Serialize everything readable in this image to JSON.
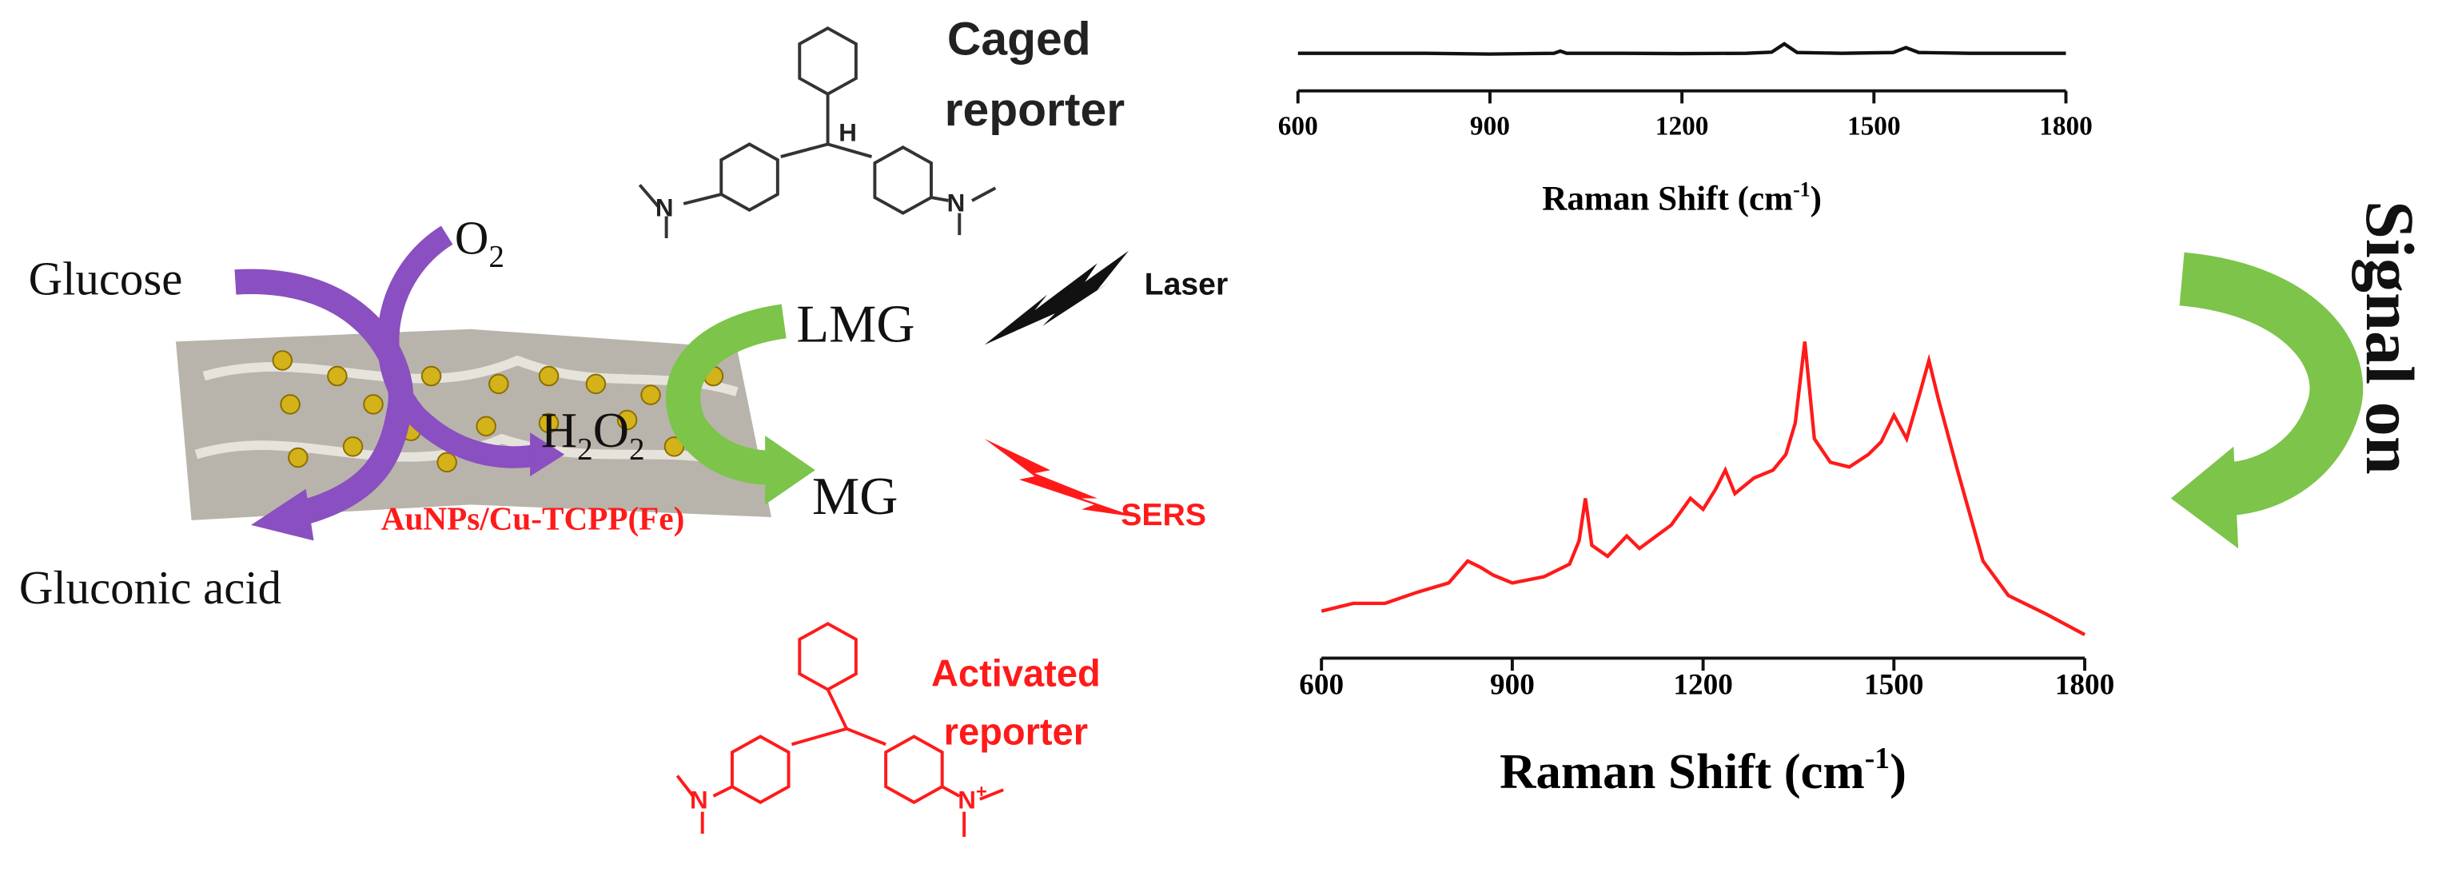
{
  "labels": {
    "caged_reporter": [
      "Caged",
      "reporter"
    ],
    "glucose": "Glucose",
    "o2": {
      "text": "O",
      "sub": "2"
    },
    "lmg": "LMG",
    "laser": "Laser",
    "h2o2": [
      "H",
      "2",
      "O",
      "2"
    ],
    "mg": "MG",
    "sers": "SERS",
    "material": "AuNPs/Cu-TCPP(Fe)",
    "gluconic_acid": "Gluconic acid",
    "activated_reporter": [
      "Activated",
      "reporter"
    ],
    "signal_on": "Signal on",
    "caged_atoms": [
      "H",
      "N",
      "N"
    ],
    "activated_atoms": [
      "N",
      "N",
      "+"
    ]
  },
  "chart_data": [
    {
      "type": "line",
      "x": [
        600,
        700,
        800,
        900,
        1000,
        1010,
        1020,
        1100,
        1200,
        1300,
        1340,
        1360,
        1380,
        1450,
        1530,
        1550,
        1570,
        1650,
        1800
      ],
      "series": [
        {
          "color": "#111111",
          "values": [
            10,
            10,
            10,
            9.8,
            10,
            10.6,
            10,
            10,
            9.9,
            10,
            10.3,
            12.5,
            10.2,
            10,
            10.2,
            11.5,
            10.2,
            10,
            10
          ]
        }
      ],
      "xlim": [
        600,
        1800
      ],
      "xticks": [
        600,
        900,
        1200,
        1500,
        1800
      ],
      "ylim": [
        0,
        30
      ],
      "x_label": {
        "text": "Raman Shift (cm",
        "sup": "-1",
        "end": ")"
      }
    },
    {
      "type": "line",
      "x": [
        600,
        650,
        700,
        750,
        800,
        830,
        850,
        870,
        900,
        950,
        990,
        1005,
        1015,
        1025,
        1050,
        1080,
        1100,
        1150,
        1180,
        1200,
        1220,
        1235,
        1250,
        1280,
        1310,
        1330,
        1345,
        1360,
        1375,
        1400,
        1430,
        1460,
        1480,
        1500,
        1520,
        1540,
        1555,
        1570,
        1600,
        1640,
        1680,
        1740,
        1800
      ],
      "series": [
        {
          "color": "#ff1a1a",
          "values": [
            15,
            17.5,
            17.5,
            21,
            24,
            31,
            29,
            26.5,
            24,
            26,
            30,
            37.5,
            51,
            36,
            32.5,
            39,
            35,
            42.5,
            51,
            47.5,
            54,
            60,
            52.5,
            57.5,
            60,
            65,
            75,
            101,
            70,
            62.5,
            61,
            65,
            69,
            77.5,
            70,
            84,
            95,
            82.5,
            60,
            31,
            20,
            14,
            7.5
          ]
        }
      ],
      "xlim": [
        600,
        1800
      ],
      "xticks": [
        600,
        900,
        1200,
        1500,
        1800
      ],
      "ylim": [
        0,
        105
      ],
      "x_label": {
        "text": "Raman Shift (cm",
        "sup": "-1",
        "end": ")"
      }
    }
  ]
}
